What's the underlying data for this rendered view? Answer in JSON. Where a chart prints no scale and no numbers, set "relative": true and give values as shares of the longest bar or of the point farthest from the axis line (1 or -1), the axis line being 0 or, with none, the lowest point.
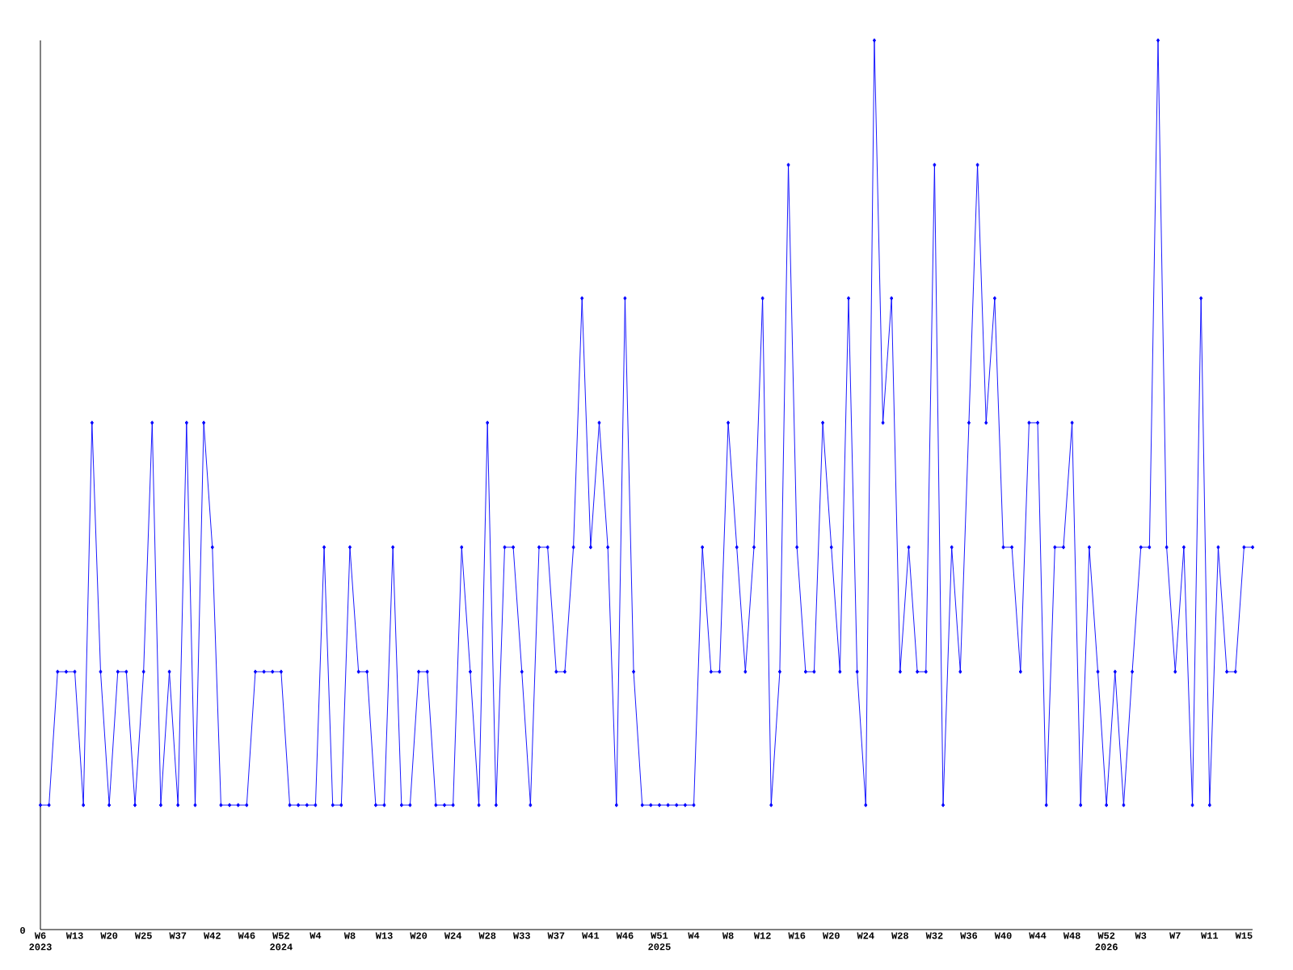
{
  "chart_data": {
    "type": "line",
    "relative": true,
    "color": "#0000ff",
    "marker": "diamond",
    "line_style": "solid",
    "categories": [
      "W6 2023",
      null,
      null,
      null,
      "W13",
      null,
      null,
      null,
      "W20",
      null,
      null,
      null,
      "W25",
      null,
      null,
      null,
      "W37",
      null,
      null,
      null,
      "W42",
      null,
      null,
      null,
      "W46",
      null,
      null,
      null,
      "W52 2024",
      null,
      null,
      null,
      "W4",
      null,
      null,
      null,
      "W8",
      null,
      null,
      null,
      "W13",
      null,
      null,
      null,
      "W20",
      null,
      null,
      null,
      "W24",
      null,
      null,
      null,
      "W28",
      null,
      null,
      null,
      "W33",
      null,
      null,
      null,
      "W37",
      null,
      null,
      null,
      "W41",
      null,
      null,
      null,
      "W46",
      null,
      null,
      null,
      "W51 2025",
      null,
      null,
      null,
      "W4",
      null,
      null,
      null,
      "W8",
      null,
      null,
      null,
      "W12",
      null,
      null,
      null,
      "W16",
      null,
      null,
      null,
      "W20",
      null,
      null,
      null,
      "W24",
      null,
      null,
      null,
      "W28",
      null,
      null,
      null,
      "W32",
      null,
      null,
      null,
      "W36",
      null,
      null,
      null,
      "W40",
      null,
      null,
      null,
      "W44",
      null,
      null,
      null,
      "W48",
      null,
      null,
      null,
      "W52 2026",
      null,
      null,
      null,
      "W3",
      null,
      null,
      null,
      "W7",
      null,
      null,
      null,
      "W11",
      null,
      null,
      null,
      "W15",
      null
    ],
    "values": [
      0.14,
      0.14,
      0.29,
      0.29,
      0.29,
      0.14,
      0.57,
      0.29,
      0.14,
      0.29,
      0.29,
      0.14,
      0.29,
      0.57,
      0.14,
      0.29,
      0.14,
      0.57,
      0.14,
      0.57,
      0.43,
      0.14,
      0.14,
      0.14,
      0.14,
      0.29,
      0.29,
      0.29,
      0.29,
      0.14,
      0.14,
      0.14,
      0.14,
      0.43,
      0.14,
      0.14,
      0.43,
      0.29,
      0.29,
      0.14,
      0.14,
      0.43,
      0.14,
      0.14,
      0.29,
      0.29,
      0.14,
      0.14,
      0.14,
      0.43,
      0.29,
      0.14,
      0.57,
      0.14,
      0.43,
      0.43,
      0.29,
      0.14,
      0.43,
      0.43,
      0.29,
      0.29,
      0.43,
      0.71,
      0.43,
      0.57,
      0.43,
      0.14,
      0.71,
      0.29,
      0.14,
      0.14,
      0.14,
      0.14,
      0.14,
      0.14,
      0.14,
      0.43,
      0.29,
      0.29,
      0.57,
      0.43,
      0.29,
      0.43,
      0.71,
      0.14,
      0.29,
      0.86,
      0.43,
      0.29,
      0.29,
      0.57,
      0.43,
      0.29,
      0.71,
      0.29,
      0.14,
      1,
      0.57,
      0.71,
      0.29,
      0.43,
      0.29,
      0.29,
      0.86,
      0.14,
      0.43,
      0.29,
      0.57,
      0.86,
      0.57,
      0.71,
      0.43,
      0.43,
      0.29,
      0.57,
      0.57,
      0.14,
      0.43,
      0.43,
      0.57,
      0.14,
      0.43,
      0.29,
      0.14,
      0.29,
      0.14,
      0.29,
      0.43,
      0.43,
      1,
      0.43,
      0.29,
      0.43,
      0.14,
      0.71,
      0.14,
      0.43,
      0.29,
      0.29,
      0.43,
      0.43
    ],
    "annotations": [
      "0"
    ]
  }
}
